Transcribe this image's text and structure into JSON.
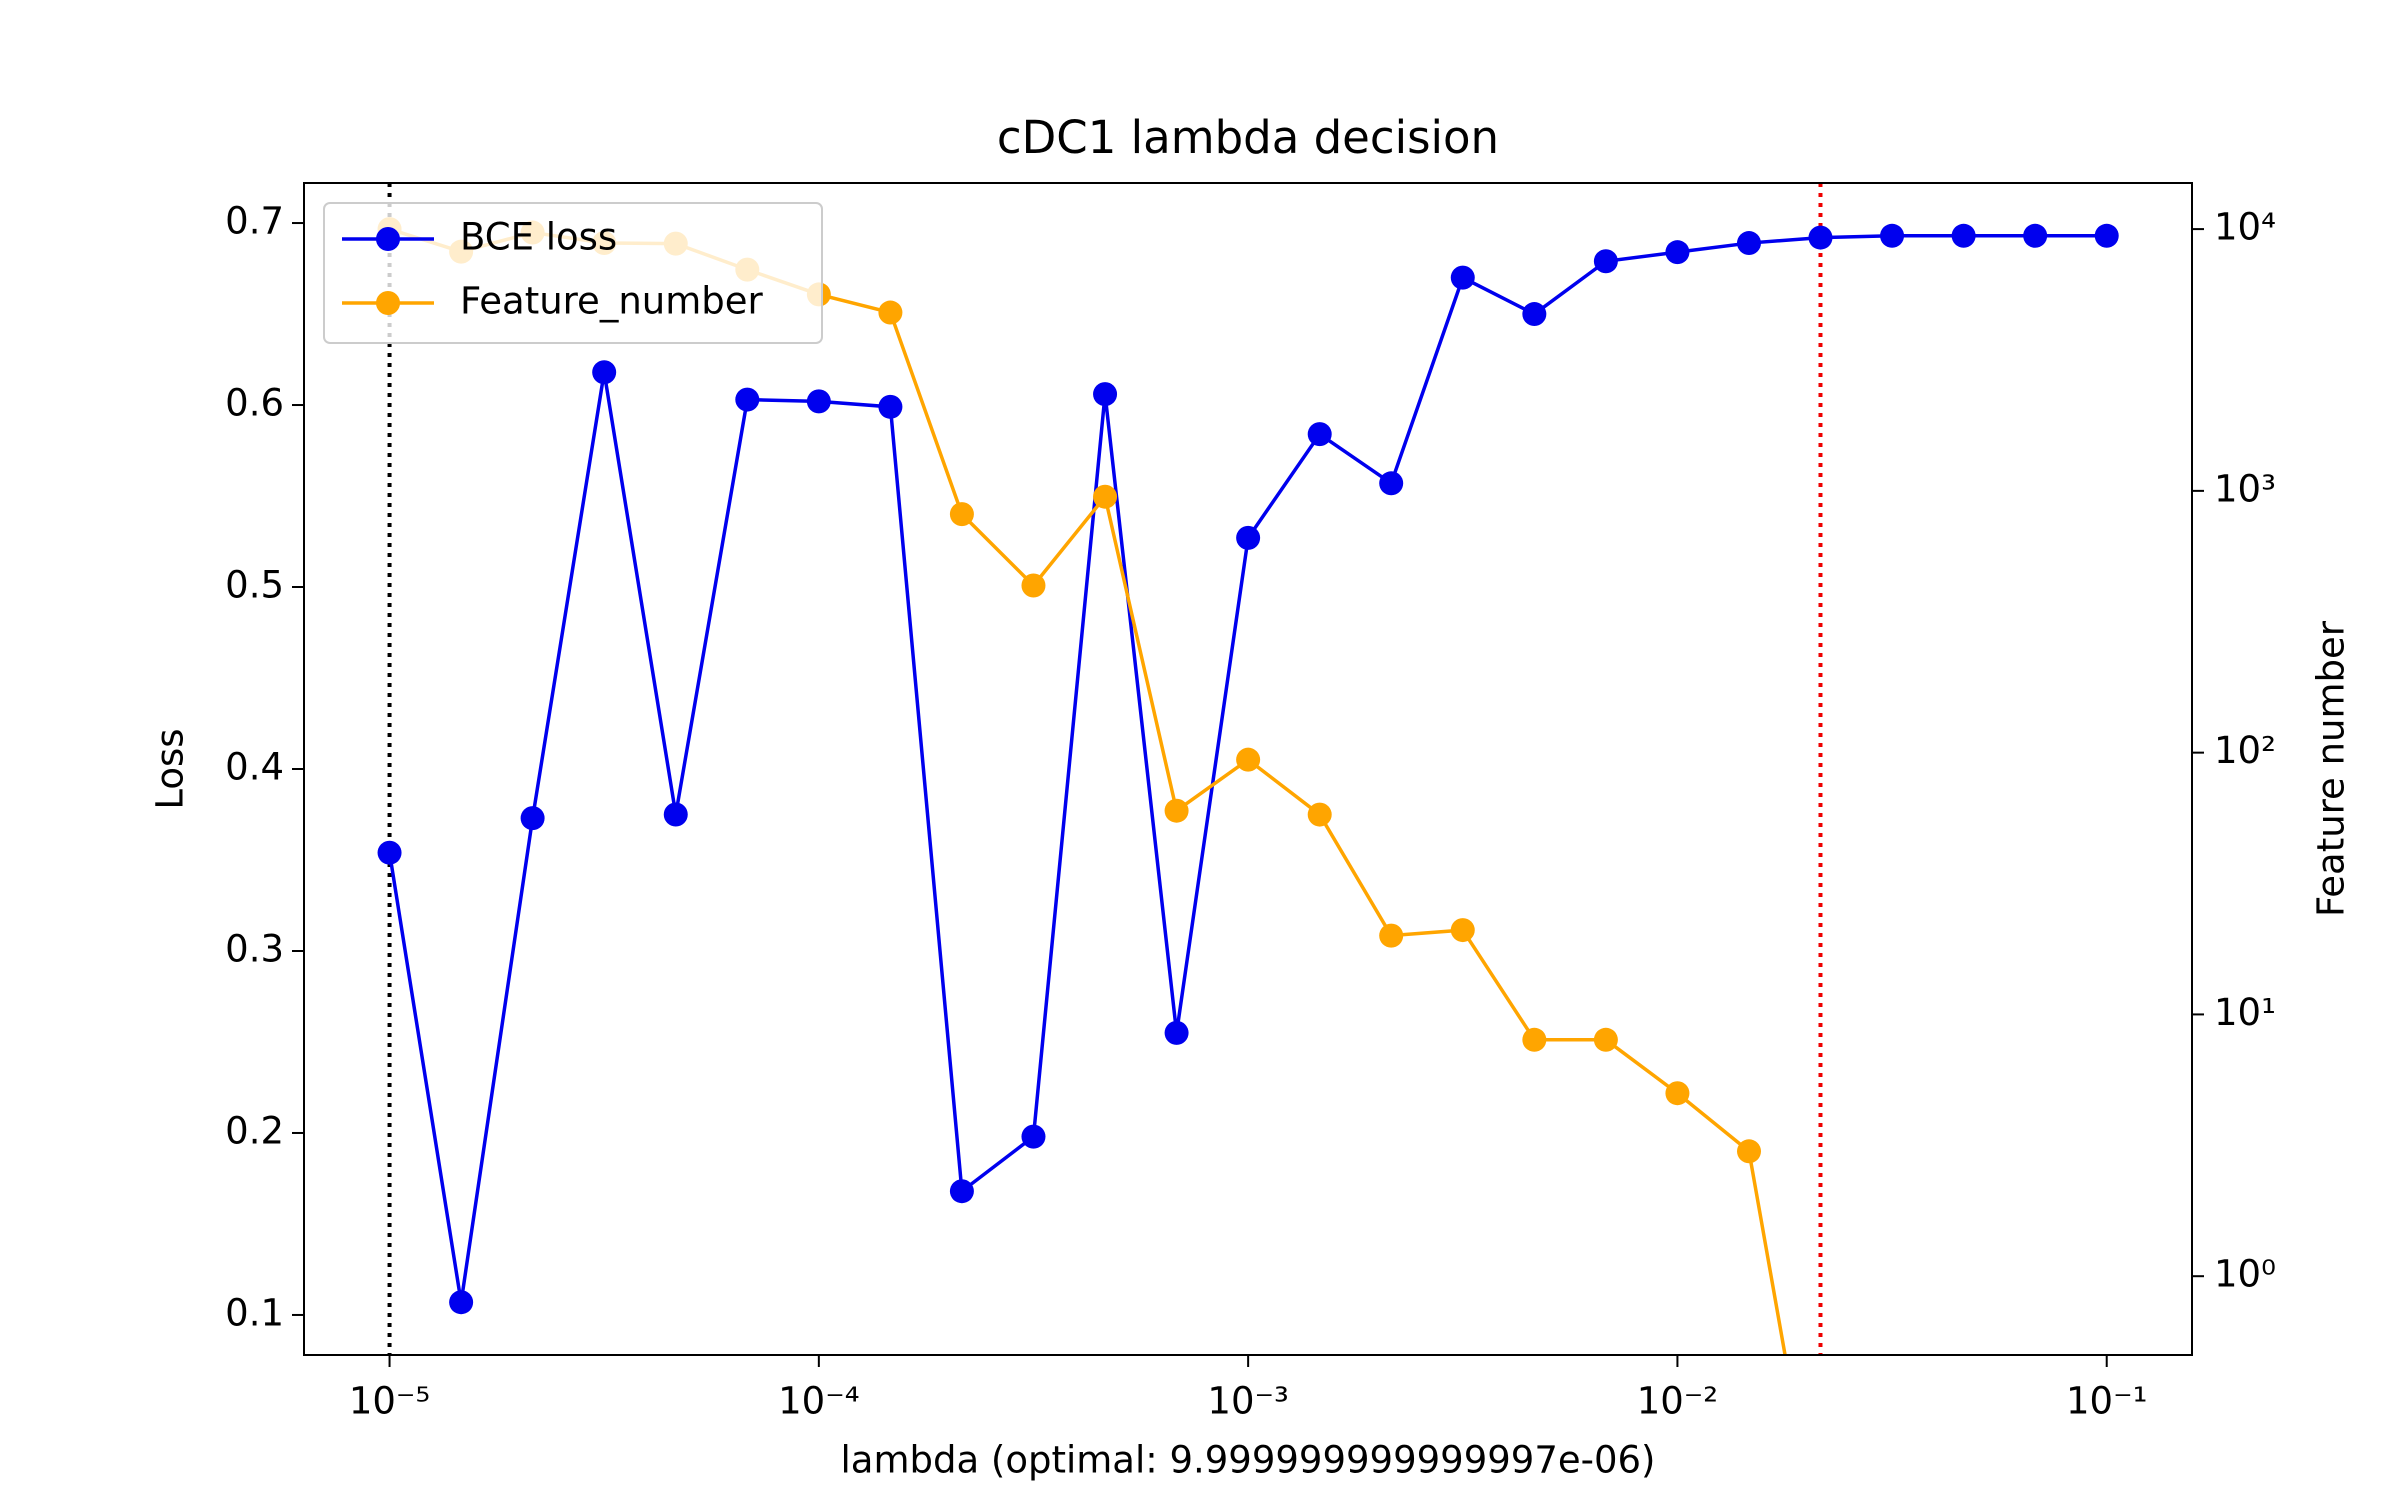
{
  "chart_data": {
    "type": "line",
    "title": "cDC1 lambda decision",
    "xlabel": "lambda (optimal: 9.999999999999997e-06)",
    "ylabel": "Loss",
    "y2label": "Feature number",
    "x": [
      1e-05,
      1.468e-05,
      2.154e-05,
      3.162e-05,
      4.642e-05,
      6.813e-05,
      0.0001,
      0.0001468,
      0.0002154,
      0.0003162,
      0.0004642,
      0.0006813,
      0.001,
      0.001468,
      0.002154,
      0.003162,
      0.004642,
      0.006813,
      0.01,
      0.01468,
      0.02154,
      0.03162,
      0.04642,
      0.06813,
      0.1
    ],
    "series": [
      {
        "name": "BCE loss",
        "color": "#0000ee",
        "values": [
          0.354,
          0.107,
          0.373,
          0.618,
          0.375,
          0.603,
          0.602,
          0.599,
          0.168,
          0.198,
          0.606,
          0.255,
          0.527,
          0.584,
          0.557,
          0.67,
          0.65,
          0.679,
          0.684,
          0.689,
          0.692,
          0.693,
          0.693,
          0.693,
          0.693
        ]
      },
      {
        "name": "Feature_number",
        "color": "#ffa500",
        "axis": "y2",
        "values": [
          10000,
          8200,
          9700,
          8850,
          8800,
          7000,
          5630,
          4800,
          815,
          435,
          950,
          60,
          94,
          58,
          20,
          21,
          8,
          8,
          5,
          3,
          0,
          0,
          0,
          0,
          0
        ]
      }
    ],
    "xscale": "log",
    "xlim": [
      6.32e-06,
      0.158
    ],
    "xticks": [
      {
        "value": 1e-05,
        "label": "10⁻⁵"
      },
      {
        "value": 0.0001,
        "label": "10⁻⁴"
      },
      {
        "value": 0.001,
        "label": "10⁻³"
      },
      {
        "value": 0.01,
        "label": "10⁻²"
      },
      {
        "value": 0.1,
        "label": "10⁻¹"
      }
    ],
    "ylim": [
      0.078,
      0.722
    ],
    "yticks": [
      0.1,
      0.2,
      0.3,
      0.4,
      0.5,
      0.6,
      0.7
    ],
    "y2scale": "log",
    "y2lim": [
      0.5,
      15000
    ],
    "y2ticks": [
      {
        "value": 1,
        "label": "10⁰"
      },
      {
        "value": 10,
        "label": "10¹"
      },
      {
        "value": 100,
        "label": "10²"
      },
      {
        "value": 1000,
        "label": "10³"
      },
      {
        "value": 10000,
        "label": "10⁴"
      }
    ],
    "vlines": [
      {
        "x": 1e-05,
        "color": "#000000"
      },
      {
        "x": 0.02154,
        "color": "#ee0000"
      }
    ],
    "legend": "upper left"
  }
}
